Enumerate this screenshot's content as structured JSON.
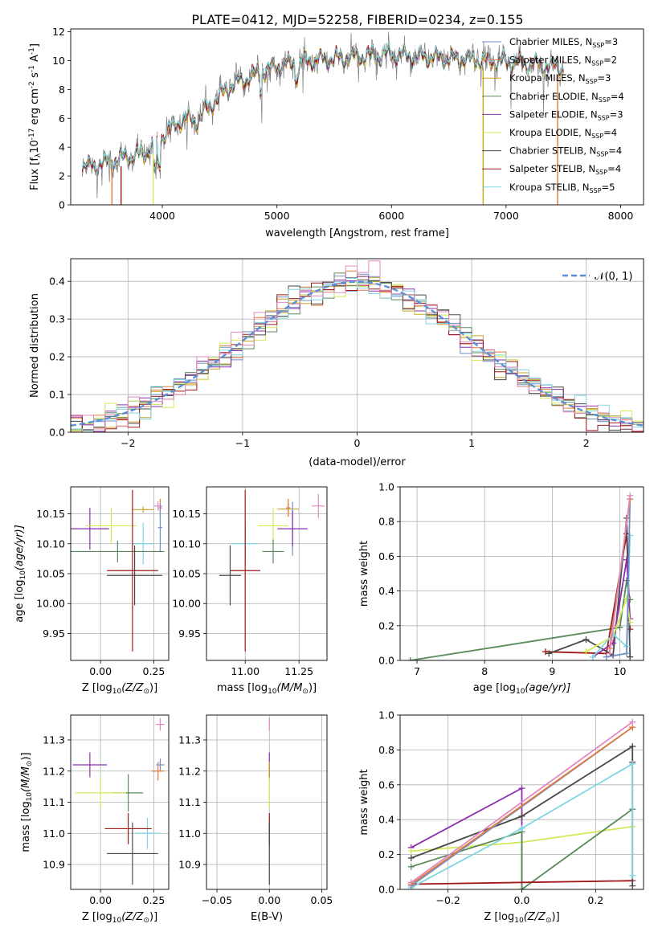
{
  "figure_title": "PLATE=0412, MJD=52258, FIBERID=0234, z=0.155",
  "colors": {
    "Chabrier MILES": "#6f8fc7",
    "Salpeter MILES": "#e07a3c",
    "Kroupa MILES": "#c9a227",
    "Chabrier ELODIE": "#5a8a5a",
    "Salpeter ELODIE": "#8e2fae",
    "Kroupa ELODIE": "#d4e85a",
    "Chabrier STELIB": "#4a4a4a",
    "Salpeter STELIB": "#a01a1a",
    "Kroupa STELIB": "#7fd6e0",
    "extra": "#e08ac0",
    "data": "#808080",
    "gauss": "#5b8fd6"
  },
  "chart_data": [
    {
      "id": "spectrum",
      "type": "line",
      "xlabel": "wavelength [Angstrom, rest frame]",
      "ylabel_main": "Flux [f",
      "ylabel_sub": "λ",
      "ylabel_rest": "10",
      "ylabel_sup1": "-17",
      "ylabel_rest2": " erg cm",
      "ylabel_sup2": "-2",
      "ylabel_rest3": " s",
      "ylabel_sup3": "-1",
      "ylabel_rest4": " A",
      "ylabel_sup4": "-1",
      "ylabel_end": "]",
      "xlim": [
        3200,
        8200
      ],
      "ylim": [
        0,
        12.2
      ],
      "xticks": [
        4000,
        5000,
        6000,
        7000,
        8000
      ],
      "yticks": [
        0,
        2,
        4,
        6,
        8,
        10,
        12
      ],
      "legend_position": "top-right",
      "legend": [
        {
          "label": "Chabrier MILES, N",
          "sub": "SSP",
          "val": "=3",
          "color": "Chabrier MILES"
        },
        {
          "label": "Salpeter MILES, N",
          "sub": "SSP",
          "val": "=2",
          "color": "Salpeter MILES"
        },
        {
          "label": "Kroupa MILES, N",
          "sub": "SSP",
          "val": "=3",
          "color": "Kroupa MILES"
        },
        {
          "label": "Chabrier ELODIE, N",
          "sub": "SSP",
          "val": "=4",
          "color": "Chabrier ELODIE"
        },
        {
          "label": "Salpeter ELODIE, N",
          "sub": "SSP",
          "val": "=3",
          "color": "Salpeter ELODIE"
        },
        {
          "label": "Kroupa ELODIE, N",
          "sub": "SSP",
          "val": "=4",
          "color": "Kroupa ELODIE"
        },
        {
          "label": "Chabrier STELIB, N",
          "sub": "SSP",
          "val": "=4",
          "color": "Chabrier STELIB"
        },
        {
          "label": "Salpeter STELIB, N",
          "sub": "SSP",
          "val": "=4",
          "color": "Salpeter STELIB"
        },
        {
          "label": "Kroupa STELIB, N",
          "sub": "SSP",
          "val": "=5",
          "color": "Kroupa STELIB"
        }
      ],
      "continuum": [
        [
          3300,
          2.6
        ],
        [
          3500,
          2.9
        ],
        [
          3700,
          3.3
        ],
        [
          3850,
          3.6
        ],
        [
          3950,
          4.2
        ],
        [
          4050,
          5.2
        ],
        [
          4200,
          6.0
        ],
        [
          4300,
          5.8
        ],
        [
          4400,
          6.8
        ],
        [
          4500,
          7.5
        ],
        [
          4600,
          8.3
        ],
        [
          4750,
          8.8
        ],
        [
          4850,
          9.2
        ],
        [
          5000,
          9.6
        ],
        [
          5200,
          9.9
        ],
        [
          5400,
          10.1
        ],
        [
          5600,
          10.2
        ],
        [
          5800,
          10.3
        ],
        [
          6000,
          10.4
        ],
        [
          6200,
          10.3
        ],
        [
          6400,
          10.2
        ],
        [
          6600,
          10.1
        ],
        [
          6800,
          10.0
        ],
        [
          7000,
          9.9
        ],
        [
          7200,
          9.8
        ],
        [
          7400,
          9.6
        ],
        [
          7500,
          9.5
        ]
      ]
    },
    {
      "id": "residuals",
      "type": "histogram",
      "xlabel": "(data-model)/error",
      "ylabel": "Normed distribution",
      "xlim": [
        -2.5,
        2.5
      ],
      "ylim": [
        0,
        0.46
      ],
      "xticks": [
        -2,
        -1,
        0,
        1,
        2
      ],
      "xtick_labels": [
        "−2",
        "−1",
        "0",
        "1",
        "2"
      ],
      "yticks": [
        0,
        0.1,
        0.2,
        0.3,
        0.4
      ],
      "ytick_labels": [
        "0.0",
        "0.1",
        "0.2",
        "0.3",
        "0.4"
      ],
      "grid": true,
      "legend_position": "top-right",
      "legend_label": "𝒩(0, 1)",
      "bin_width": 0.1
    },
    {
      "id": "age_vs_Z",
      "type": "scatter",
      "xlabel_main": "Z [log",
      "xlabel_sub": "10",
      "xlabel_rest": "(Z/Z",
      "xlabel_sub2": "⊙",
      "xlabel_end": ")]",
      "ylabel_main": "age  [log",
      "ylabel_sub": "10",
      "ylabel_rest": "(age/yr)]",
      "xlim": [
        -0.14,
        0.32
      ],
      "ylim": [
        9.905,
        10.195
      ],
      "xticks": [
        0.0,
        0.25
      ],
      "xtick_labels": [
        "0.00",
        "0.25"
      ],
      "yticks": [
        9.95,
        10.0,
        10.05,
        10.1,
        10.15
      ],
      "ytick_labels": [
        "9.95",
        "10.00",
        "10.05",
        "10.10",
        "10.15"
      ],
      "points": [
        {
          "c": "Kroupa MILES",
          "x": 0.2,
          "y": 10.157,
          "xe": 0.05,
          "ye": 0.005
        },
        {
          "c": "Salpeter MILES",
          "x": 0.28,
          "y": 10.16,
          "xe": 0.01,
          "ye": 0.015
        },
        {
          "c": "extra",
          "x": 0.27,
          "y": 10.163,
          "xe": 0.02,
          "ye": 0.008
        },
        {
          "c": "Salpeter ELODIE",
          "x": -0.05,
          "y": 10.125,
          "xe": 0.09,
          "ye": 0.035
        },
        {
          "c": "Kroupa ELODIE",
          "x": 0.05,
          "y": 10.13,
          "xe": 0.12,
          "ye": 0.03
        },
        {
          "c": "Chabrier MILES",
          "x": 0.28,
          "y": 10.127,
          "xe": 0.01,
          "ye": 0.04
        },
        {
          "c": "Kroupa STELIB",
          "x": 0.2,
          "y": 10.1,
          "xe": 0.05,
          "ye": 0.035
        },
        {
          "c": "Chabrier ELODIE",
          "x": 0.08,
          "y": 10.087,
          "xe": 0.22,
          "ye": 0.018
        },
        {
          "c": "Salpeter STELIB",
          "x": 0.15,
          "y": 10.055,
          "xe": 0.12,
          "ye": 0.135
        },
        {
          "c": "Chabrier STELIB",
          "x": 0.16,
          "y": 10.047,
          "xe": 0.13,
          "ye": 0.05
        }
      ]
    },
    {
      "id": "age_vs_mass",
      "type": "scatter",
      "xlabel_main": "mass [log",
      "xlabel_sub": "10",
      "xlabel_rest": "(M/M",
      "xlabel_sub2": "⊙",
      "xlabel_end": ")]",
      "xlim": [
        10.82,
        11.38
      ],
      "ylim": [
        9.905,
        10.195
      ],
      "xticks": [
        11.0,
        11.25
      ],
      "xtick_labels": [
        "11.00",
        "11.25"
      ],
      "yticks": [
        9.95,
        10.0,
        10.05,
        10.1,
        10.15
      ],
      "ytick_labels": [
        "9.95",
        "10.00",
        "10.05",
        "10.10",
        "10.15"
      ],
      "points": [
        {
          "c": "extra",
          "x": 11.34,
          "y": 10.163,
          "xe": 0.03,
          "ye": 0.02
        },
        {
          "c": "Kroupa MILES",
          "x": 11.2,
          "y": 10.158,
          "xe": 0.05,
          "ye": 0.01
        },
        {
          "c": "Salpeter MILES",
          "x": 11.2,
          "y": 10.16,
          "xe": 0.01,
          "ye": 0.015
        },
        {
          "c": "Chabrier MILES",
          "x": 11.22,
          "y": 10.125,
          "xe": 0.01,
          "ye": 0.045
        },
        {
          "c": "Salpeter ELODIE",
          "x": 11.22,
          "y": 10.125,
          "xe": 0.07,
          "ye": 0.03
        },
        {
          "c": "Kroupa ELODIE",
          "x": 11.13,
          "y": 10.13,
          "xe": 0.07,
          "ye": 0.03
        },
        {
          "c": "Kroupa STELIB",
          "x": 11.0,
          "y": 10.1,
          "xe": 0.06,
          "ye": 0.03
        },
        {
          "c": "Chabrier ELODIE",
          "x": 11.13,
          "y": 10.087,
          "xe": 0.05,
          "ye": 0.02
        },
        {
          "c": "Salpeter STELIB",
          "x": 11.0,
          "y": 10.055,
          "xe": 0.07,
          "ye": 0.135
        },
        {
          "c": "Chabrier STELIB",
          "x": 10.93,
          "y": 10.047,
          "xe": 0.05,
          "ye": 0.05
        }
      ]
    },
    {
      "id": "weight_vs_age",
      "type": "line",
      "xlabel_main": "age  [log",
      "xlabel_sub": "10",
      "xlabel_rest": "(age/yr)]",
      "ylabel": "mass weight",
      "xlim": [
        6.75,
        10.35
      ],
      "ylim": [
        0,
        1.0
      ],
      "xticks": [
        7,
        8,
        9,
        10
      ],
      "xtick_labels": [
        "7",
        "8",
        "9",
        "10"
      ],
      "yticks": [
        0,
        0.2,
        0.4,
        0.6,
        0.8,
        1.0
      ],
      "ytick_labels": [
        "0.0",
        "0.2",
        "0.4",
        "0.6",
        "0.8",
        "1.0"
      ],
      "grid": true,
      "series": [
        {
          "c": "Chabrier ELODIE",
          "pts": [
            [
              6.9,
              0.0
            ],
            [
              10.0,
              0.19
            ],
            [
              10.1,
              0.46
            ],
            [
              10.15,
              0.35
            ]
          ]
        },
        {
          "c": "Salpeter STELIB",
          "pts": [
            [
              8.9,
              0.05
            ],
            [
              9.8,
              0.04
            ],
            [
              10.1,
              0.73
            ],
            [
              10.15,
              0.18
            ]
          ]
        },
        {
          "c": "Chabrier STELIB",
          "pts": [
            [
              8.95,
              0.04
            ],
            [
              9.5,
              0.12
            ],
            [
              9.9,
              0.03
            ],
            [
              10.1,
              0.82
            ],
            [
              10.15,
              0.02
            ]
          ]
        },
        {
          "c": "Salpeter ELODIE",
          "pts": [
            [
              9.6,
              0.02
            ],
            [
              9.9,
              0.1
            ],
            [
              10.1,
              0.58
            ],
            [
              10.15,
              0.24
            ]
          ]
        },
        {
          "c": "Kroupa ELODIE",
          "pts": [
            [
              9.5,
              0.05
            ],
            [
              9.9,
              0.14
            ],
            [
              10.1,
              0.36
            ],
            [
              10.15,
              0.22
            ]
          ]
        },
        {
          "c": "Kroupa STELIB",
          "pts": [
            [
              9.6,
              0.02
            ],
            [
              9.9,
              0.15
            ],
            [
              10.1,
              0.08
            ],
            [
              10.15,
              0.72
            ]
          ]
        },
        {
          "c": "Chabrier MILES",
          "pts": [
            [
              9.8,
              0.02
            ],
            [
              10.1,
              0.04
            ],
            [
              10.15,
              0.93
            ]
          ]
        },
        {
          "c": "Salpeter MILES",
          "pts": [
            [
              9.85,
              0.07
            ],
            [
              10.15,
              0.93
            ]
          ]
        },
        {
          "c": "extra",
          "pts": [
            [
              9.85,
              0.04
            ],
            [
              10.15,
              0.95
            ]
          ]
        }
      ]
    },
    {
      "id": "mass_vs_Z",
      "type": "scatter",
      "xlabel_main": "Z [log",
      "xlabel_sub": "10",
      "xlabel_rest": "(Z/Z",
      "xlabel_sub2": "⊙",
      "xlabel_end": ")]",
      "ylabel_main": "mass [log",
      "ylabel_sub": "10",
      "ylabel_rest": "(M/M",
      "ylabel_sub2": "⊙",
      "ylabel_end": ")]",
      "xlim": [
        -0.14,
        0.32
      ],
      "ylim": [
        10.82,
        11.38
      ],
      "xticks": [
        0.0,
        0.25
      ],
      "xtick_labels": [
        "0.00",
        "0.25"
      ],
      "yticks": [
        10.9,
        11.0,
        11.1,
        11.2,
        11.3
      ],
      "ytick_labels": [
        "10.9",
        "11.0",
        "11.1",
        "11.2",
        "11.3"
      ],
      "points": [
        {
          "c": "extra",
          "x": 0.28,
          "y": 11.35,
          "xe": 0.02,
          "ye": 0.02
        },
        {
          "c": "Chabrier MILES",
          "x": 0.28,
          "y": 11.22,
          "xe": 0.02,
          "ye": 0.02
        },
        {
          "c": "Salpeter ELODIE",
          "x": -0.05,
          "y": 11.22,
          "xe": 0.08,
          "ye": 0.04
        },
        {
          "c": "Salpeter MILES",
          "x": 0.27,
          "y": 11.2,
          "xe": 0.03,
          "ye": 0.03
        },
        {
          "c": "Chabrier ELODIE",
          "x": 0.13,
          "y": 11.13,
          "xe": 0.07,
          "ye": 0.06
        },
        {
          "c": "Kroupa ELODIE",
          "x": 0.0,
          "y": 11.13,
          "xe": 0.12,
          "ye": 0.05
        },
        {
          "c": "Kroupa STELIB",
          "x": 0.22,
          "y": 11.0,
          "xe": 0.06,
          "ye": 0.05
        },
        {
          "c": "Salpeter STELIB",
          "x": 0.13,
          "y": 11.015,
          "xe": 0.11,
          "ye": 0.05
        },
        {
          "c": "Chabrier STELIB",
          "x": 0.15,
          "y": 10.935,
          "xe": 0.12,
          "ye": 0.1
        }
      ]
    },
    {
      "id": "mass_vs_ebv",
      "type": "scatter",
      "xlabel": "E(B-V)",
      "xlim": [
        -0.06,
        0.055
      ],
      "ylim": [
        10.82,
        11.38
      ],
      "xticks": [
        -0.05,
        0.0,
        0.05
      ],
      "xtick_labels": [
        "−0.05",
        "0.00",
        "0.05"
      ],
      "yticks": [
        10.9,
        11.0,
        11.1,
        11.2,
        11.3
      ],
      "ytick_labels": [
        "10.9",
        "11.0",
        "11.1",
        "11.2",
        "11.3"
      ],
      "points": [
        {
          "c": "extra",
          "x": 0.0,
          "y": 11.35,
          "xe": 0.0,
          "ye": 0.02
        },
        {
          "c": "Salpeter ELODIE",
          "x": 0.0,
          "y": 11.22,
          "xe": 0.0,
          "ye": 0.04
        },
        {
          "c": "Kroupa MILES",
          "x": 0.0,
          "y": 11.2,
          "xe": 0.0,
          "ye": 0.03
        },
        {
          "c": "Kroupa ELODIE",
          "x": 0.0,
          "y": 11.13,
          "xe": 0.0,
          "ye": 0.05
        },
        {
          "c": "Kroupa STELIB",
          "x": 0.0,
          "y": 11.0,
          "xe": 0.0,
          "ye": 0.05
        },
        {
          "c": "Salpeter STELIB",
          "x": 0.0,
          "y": 11.015,
          "xe": 0.0,
          "ye": 0.05
        },
        {
          "c": "Chabrier STELIB",
          "x": 0.0,
          "y": 10.935,
          "xe": 0.0,
          "ye": 0.1
        }
      ]
    },
    {
      "id": "weight_vs_Z",
      "type": "line",
      "xlabel_main": "Z [log",
      "xlabel_sub": "10",
      "xlabel_rest": "(Z/Z",
      "xlabel_sub2": "⊙",
      "xlabel_end": ")]",
      "ylabel": "mass weight",
      "xlim": [
        -0.33,
        0.33
      ],
      "ylim": [
        0,
        1.0
      ],
      "xticks": [
        -0.2,
        0.0,
        0.2
      ],
      "xtick_labels": [
        "−0.2",
        "0.0",
        "0.2"
      ],
      "yticks": [
        0,
        0.2,
        0.4,
        0.6,
        0.8,
        1.0
      ],
      "ytick_labels": [
        "0.0",
        "0.2",
        "0.4",
        "0.6",
        "0.8",
        "1.0"
      ],
      "grid": true,
      "series": [
        {
          "c": "Salpeter ELODIE",
          "pts": [
            [
              -0.3,
              0.24
            ],
            [
              0.0,
              0.58
            ],
            [
              0.0,
              0.0
            ]
          ]
        },
        {
          "c": "Kroupa ELODIE",
          "pts": [
            [
              -0.3,
              0.22
            ],
            [
              0.0,
              0.27
            ],
            [
              0.3,
              0.36
            ]
          ]
        },
        {
          "c": "Chabrier ELODIE",
          "pts": [
            [
              -0.3,
              0.13
            ],
            [
              0.0,
              0.33
            ],
            [
              0.0,
              0.0
            ],
            [
              0.3,
              0.46
            ]
          ]
        },
        {
          "c": "Salpeter STELIB",
          "pts": [
            [
              -0.3,
              0.03
            ],
            [
              0.3,
              0.05
            ]
          ]
        },
        {
          "c": "Chabrier STELIB",
          "pts": [
            [
              -0.3,
              0.18
            ],
            [
              0.0,
              0.42
            ],
            [
              0.3,
              0.82
            ],
            [
              0.3,
              0.73
            ],
            [
              0.3,
              0.02
            ]
          ]
        },
        {
          "c": "Kroupa STELIB",
          "pts": [
            [
              -0.3,
              0.01
            ],
            [
              0.0,
              0.35
            ],
            [
              0.3,
              0.72
            ],
            [
              0.3,
              0.08
            ]
          ]
        },
        {
          "c": "Chabrier MILES",
          "pts": [
            [
              -0.3,
              0.02
            ],
            [
              0.3,
              0.93
            ]
          ]
        },
        {
          "c": "Salpeter MILES",
          "pts": [
            [
              -0.3,
              0.03
            ],
            [
              0.3,
              0.93
            ]
          ]
        },
        {
          "c": "extra",
          "pts": [
            [
              -0.3,
              0.04
            ],
            [
              0.3,
              0.96
            ]
          ]
        }
      ]
    }
  ]
}
